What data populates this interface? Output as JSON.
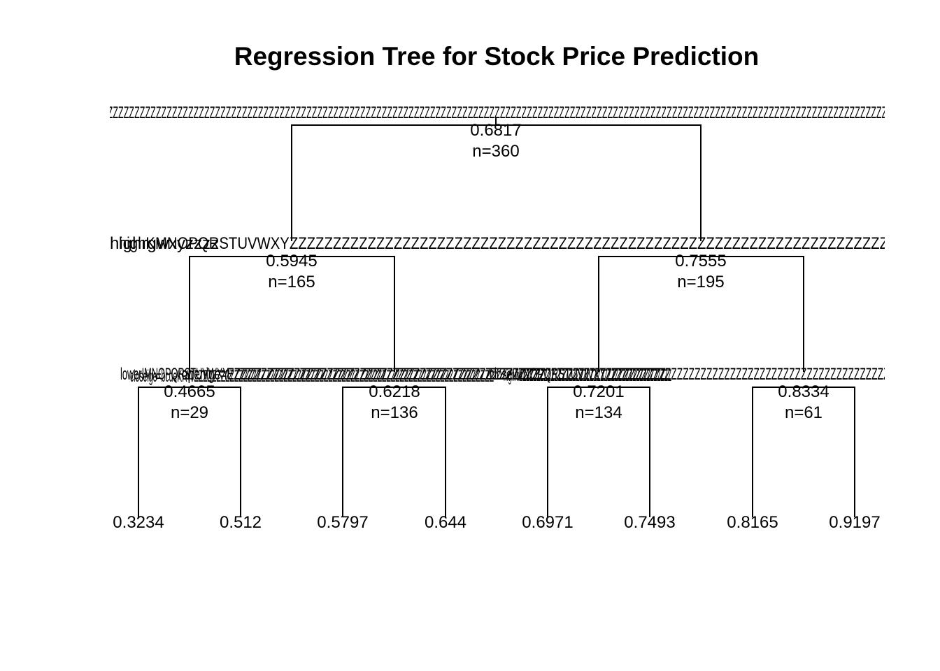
{
  "title": "Regression Tree for Stock Price Prediction",
  "tree": {
    "root": {
      "value": "0.6817",
      "n": "n=360",
      "split_label": "ZZZZZZZZZZZZZZZZZZZZZZZZZZZZZZZZZZZZZZZZZZZZZZZZZZZZZZZZZZZZZZZZZZZZZZZZZZZZZZZZZZZZZZZZZZZZZZZZZZZZZZZZZZZZZZZZZZZZZZZZZZZZZZZZZZZZZZZZZZZZZZZZZZZ"
    },
    "level1": [
      {
        "value": "0.5945",
        "n": "n=165",
        "split_labels": [
          "lowerIMNOPQRSTUVWXYZZZZZZZZZZZZZZZZZZZZZZZZZZZZZZZZZZZZZZZZZZZZZZZZZZZZZZZZZZZZZZZZZZZZZZZZZZZZZZZZ",
          "openige=EZZZZZZZZZZZZZZZZZZZZZZZZZZZZZZZZZZZZZZZZZZZZZZZ"
        ]
      },
      {
        "value": "0.7555",
        "n": "n=195",
        "split_labels": [
          "closeIMNOPQRSTUVWXYZZZZZZZZZZZZZZZZZZZZZZZZZZZZZZZZZZZZZZZZZZZZZZZZZ"
        ]
      }
    ],
    "root_split_overlay": [
      "highrgwxyzzzz",
      "highKMNOPQRSTUVWXYZZZZZZZZZZZZZZZZZZZZZZZZZZZZZZZZZZZZZZZZZZZZZZZZZZZZZZZZZZZZZZZZZZZZZ"
    ],
    "level2": [
      {
        "value": "0.4665",
        "n": "n=29"
      },
      {
        "value": "0.6218",
        "n": "n=136"
      },
      {
        "value": "0.7201",
        "n": "n=134"
      },
      {
        "value": "0.8334",
        "n": "n=61"
      }
    ],
    "level2_split_overlay": [
      "closeige=bcdeKRWZZZZZZZZZZZZZZZZZZZZZZZZZZZZZZZZZZZZZZZZZZZZZZZZZZZZZZZZZZZZZZZZZZZ",
      "highrdzZZZZZZZZZZZZZZZZZZZZZZZZZZZZZZZZZZZZZZZZZZ"
    ],
    "leaves": [
      "0.3234",
      "0.512",
      "0.5797",
      "0.644",
      "0.6971",
      "0.7493",
      "0.8165",
      "0.9197"
    ]
  },
  "colors": {
    "line": "#000000",
    "text": "#000000",
    "background": "#ffffff"
  }
}
